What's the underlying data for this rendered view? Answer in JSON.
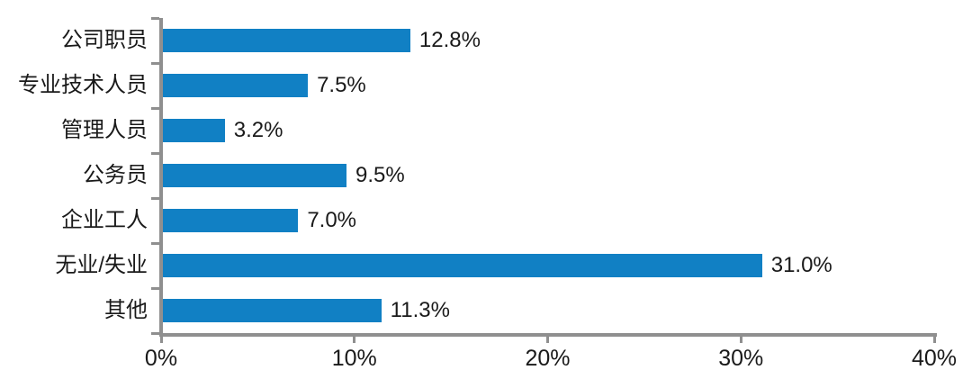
{
  "chart_data": {
    "type": "bar",
    "orientation": "horizontal",
    "title": "",
    "xlabel": "",
    "ylabel": "",
    "categories": [
      "公司职员",
      "专业技术人员",
      "管理人员",
      "公务员",
      "企业工人",
      "无业/失业",
      "其他"
    ],
    "values": [
      12.8,
      7.5,
      3.2,
      9.5,
      7.0,
      31.0,
      11.3
    ],
    "value_labels": [
      "12.8%",
      "7.5%",
      "3.2%",
      "9.5%",
      "7.0%",
      "31.0%",
      "11.3%"
    ],
    "xlim": [
      0,
      40
    ],
    "x_tick_values": [
      0,
      10,
      20,
      30,
      40
    ],
    "x_tick_labels": [
      "0%",
      "10%",
      "20%",
      "30%",
      "40%"
    ],
    "grid": false,
    "legend": null,
    "colors": {
      "bar": "#1180c4",
      "axis": "#8f8f8f",
      "text": "#1a1a1a",
      "background": "#ffffff"
    }
  }
}
